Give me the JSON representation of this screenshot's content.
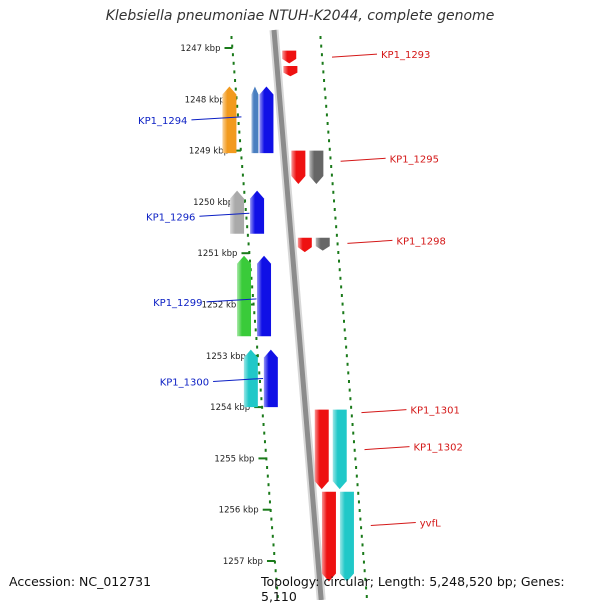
{
  "title": "Klebsiella pneumoniae NTUH-K2044, complete genome",
  "footer": {
    "accession": "Accession: NC_012731",
    "summary": "Topology: circular; Length: 5,248,520 bp; Genes: 5,110"
  },
  "colors": {
    "ruler": "#1a7a1a",
    "backbone": "#8c8c8c",
    "plus_label": "#0b1fc4",
    "minus_label": "#d41818"
  },
  "ruler": {
    "unit": "kbp",
    "start_kbp": 1247,
    "end_kbp": 1257,
    "ticks": [
      "1247 kbp",
      "1248 kbp",
      "1249 kbp",
      "1250 kbp",
      "1251 kbp",
      "1252 kbp",
      "1253 kbp",
      "1254 kbp",
      "1255 kbp",
      "1256 kbp",
      "1257 kbp"
    ]
  },
  "features": [
    {
      "id": "f1",
      "label": "",
      "strand": "-",
      "lane": 1,
      "start": 1247.05,
      "end": 1247.3,
      "color": "#ee1111"
    },
    {
      "id": "f2",
      "label": "",
      "strand": "-",
      "lane": 1,
      "start": 1247.35,
      "end": 1247.55,
      "color": "#ee1111"
    },
    {
      "id": "f3",
      "label": "",
      "strand": "+",
      "lane": 1,
      "start": 1247.75,
      "end": 1249.05,
      "color": "#f29a1e"
    },
    {
      "id": "f4",
      "label": "",
      "strand": "+",
      "lane": 2,
      "start": 1247.75,
      "end": 1249.05,
      "color": "#4a7fc0"
    },
    {
      "id": "f5",
      "label": "",
      "strand": "+",
      "lane": 3,
      "start": 1247.75,
      "end": 1249.05,
      "color": "#1010e6"
    },
    {
      "id": "f6",
      "label": "",
      "strand": "-",
      "lane": 1,
      "start": 1249.0,
      "end": 1249.65,
      "color": "#ee1111"
    },
    {
      "id": "f7",
      "label": "",
      "strand": "-",
      "lane": 2,
      "start": 1249.0,
      "end": 1249.65,
      "color": "#666666"
    },
    {
      "id": "f8",
      "label": "",
      "strand": "+",
      "lane": 1,
      "start": 1249.78,
      "end": 1250.62,
      "color": "#aaaaaa"
    },
    {
      "id": "f9",
      "label": "",
      "strand": "+",
      "lane": 2,
      "start": 1249.78,
      "end": 1250.62,
      "color": "#1010e6"
    },
    {
      "id": "f10",
      "label": "",
      "strand": "-",
      "lane": 1,
      "start": 1250.7,
      "end": 1250.98,
      "color": "#ee1111"
    },
    {
      "id": "f11",
      "label": "",
      "strand": "-",
      "lane": 2,
      "start": 1250.7,
      "end": 1250.95,
      "color": "#666666"
    },
    {
      "id": "f12",
      "label": "",
      "strand": "+",
      "lane": 1,
      "start": 1251.05,
      "end": 1252.62,
      "color": "#3acb3a"
    },
    {
      "id": "f13",
      "label": "",
      "strand": "+",
      "lane": 2,
      "start": 1251.05,
      "end": 1252.62,
      "color": "#1010e6"
    },
    {
      "id": "f14",
      "label": "",
      "strand": "+",
      "lane": 1,
      "start": 1252.88,
      "end": 1254.0,
      "color": "#20c8c8"
    },
    {
      "id": "f15",
      "label": "",
      "strand": "+",
      "lane": 2,
      "start": 1252.88,
      "end": 1254.0,
      "color": "#1010e6"
    },
    {
      "id": "f16",
      "label": "",
      "strand": "-",
      "lane": 1,
      "start": 1254.05,
      "end": 1255.6,
      "color": "#ee1111"
    },
    {
      "id": "f17",
      "label": "",
      "strand": "-",
      "lane": 2,
      "start": 1254.05,
      "end": 1255.6,
      "color": "#20c8c8"
    },
    {
      "id": "f18",
      "label": "",
      "strand": "-",
      "lane": 1,
      "start": 1255.65,
      "end": 1257.4,
      "color": "#ee1111"
    },
    {
      "id": "f19",
      "label": "",
      "strand": "-",
      "lane": 2,
      "start": 1255.65,
      "end": 1257.4,
      "color": "#20c8c8"
    }
  ],
  "labels": [
    {
      "text": "KP1_1293",
      "strand": "-",
      "pos": 1247.12
    },
    {
      "text": "KP1_1294",
      "strand": "+",
      "pos": 1248.4
    },
    {
      "text": "KP1_1295",
      "strand": "-",
      "pos": 1249.15
    },
    {
      "text": "KP1_1296",
      "strand": "+",
      "pos": 1250.28
    },
    {
      "text": "KP1_1298",
      "strand": "-",
      "pos": 1250.75
    },
    {
      "text": "KP1_1299",
      "strand": "+",
      "pos": 1251.95
    },
    {
      "text": "KP1_1300",
      "strand": "+",
      "pos": 1253.5
    },
    {
      "text": "KP1_1301",
      "strand": "-",
      "pos": 1254.05
    },
    {
      "text": "KP1_1302",
      "strand": "-",
      "pos": 1254.77
    },
    {
      "text": "yvfL",
      "strand": "-",
      "pos": 1256.25
    }
  ]
}
